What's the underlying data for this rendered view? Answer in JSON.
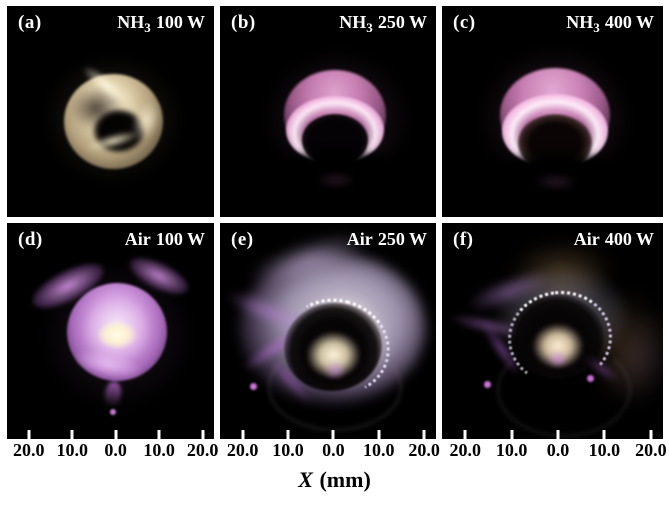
{
  "figure": {
    "type": "photograph-grid",
    "panels": [
      {
        "tag": "(a)",
        "gas": "NH",
        "gas_sub": "3",
        "power": "100 W"
      },
      {
        "tag": "(b)",
        "gas": "NH",
        "gas_sub": "3",
        "power": "250 W"
      },
      {
        "tag": "(c)",
        "gas": "NH",
        "gas_sub": "3",
        "power": "400 W"
      },
      {
        "tag": "(d)",
        "gas": "Air",
        "gas_sub": "",
        "power": "100 W"
      },
      {
        "tag": "(e)",
        "gas": "Air",
        "gas_sub": "",
        "power": "250 W"
      },
      {
        "tag": "(f)",
        "gas": "Air",
        "gas_sub": "",
        "power": "400 W"
      }
    ],
    "x_axis": {
      "symbol": "X",
      "unit": "(mm)",
      "tick_labels": [
        "20.0",
        "10.0",
        "0.0",
        "10.0",
        "20.0"
      ]
    },
    "colors": {
      "background": "#ffffff",
      "panel_background": "#000000",
      "panel_text": "#ffffff",
      "axis_text": "#000000",
      "nh3_plasma_pink": "#d690c8",
      "air_plasma_purple": "#c98fdc",
      "hot_core_white": "#fff4d8",
      "crucible_cream": "#e3d3ae"
    }
  }
}
